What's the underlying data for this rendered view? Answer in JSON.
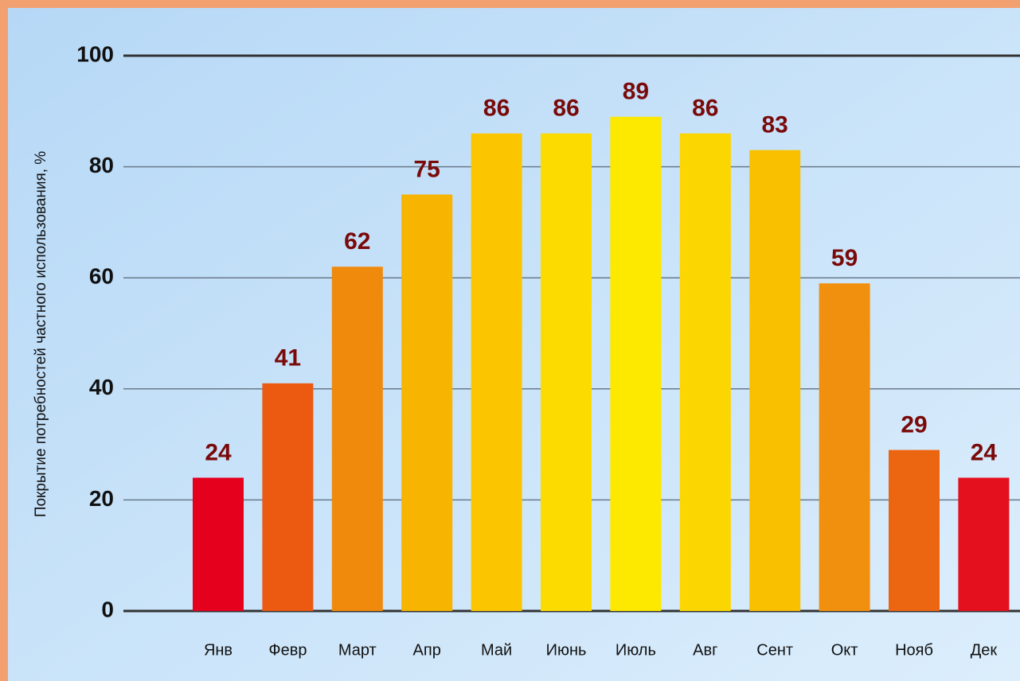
{
  "chart_data": {
    "type": "bar",
    "y_axis_label": "Покрытие потребностей частного использования, %",
    "categories": [
      "Янв",
      "Февр",
      "Март",
      "Апр",
      "Май",
      "Июнь",
      "Июль",
      "Авг",
      "Сент",
      "Окт",
      "Нояб",
      "Дек"
    ],
    "values": [
      24,
      41,
      62,
      75,
      86,
      86,
      89,
      86,
      83,
      59,
      29,
      24
    ],
    "colors": [
      "#e5001e",
      "#ec5a12",
      "#f08a0c",
      "#f7b400",
      "#fbc600",
      "#fcdc00",
      "#fde800",
      "#fcd600",
      "#f9c000",
      "#f1900e",
      "#ec6612",
      "#e5101e"
    ],
    "ylim": [
      0,
      100
    ],
    "yticks": [
      0,
      20,
      40,
      60,
      80,
      100
    ],
    "grid": true
  }
}
